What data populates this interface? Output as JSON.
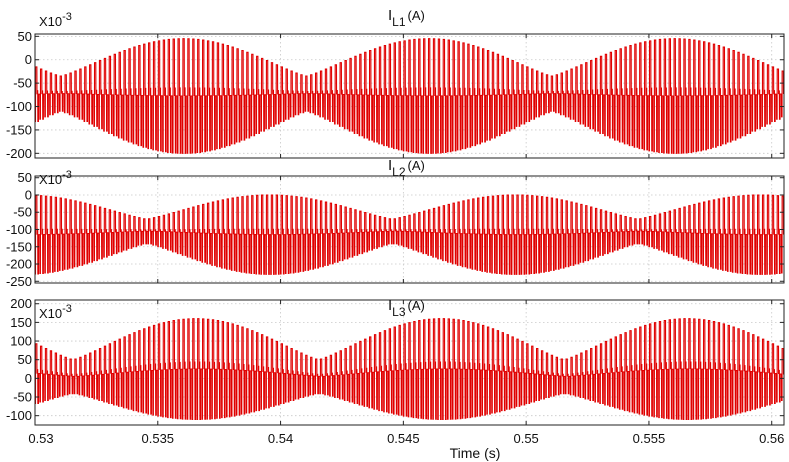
{
  "chart_data": [
    {
      "type": "line",
      "title_main": "I",
      "title_sub": "L1",
      "title_unit": "(A)",
      "scale_label_base": "X10",
      "scale_label_exp": "-3",
      "xlim": [
        0.53,
        0.5605
      ],
      "ylim": [
        -210,
        55
      ],
      "yticks": [
        50,
        0,
        -50,
        -100,
        -150,
        -200
      ],
      "ytick_labels": [
        "50",
        "0",
        "-50",
        "-100",
        "-150",
        "-200"
      ],
      "grid": true,
      "series": [
        {
          "color": "#e00000",
          "envelope_period_s": 0.01,
          "envelope_phase_s": 0.536,
          "low_level_when_quiet": -110,
          "high_level_when_quiet": -35,
          "min_at_envelope_peak": -200,
          "max_at_envelope_peak": 45,
          "switching_period_s": 0.0002,
          "trend": "increasing amplitude pulses modulated at 100 Hz",
          "min": -200,
          "max": 45
        }
      ]
    },
    {
      "type": "line",
      "title_main": "I",
      "title_sub": "L2",
      "title_unit": "(A)",
      "scale_label_base": "X10",
      "scale_label_exp": "-3",
      "xlim": [
        0.53,
        0.5605
      ],
      "ylim": [
        -255,
        55
      ],
      "yticks": [
        50,
        0,
        -50,
        -100,
        -150,
        -200,
        -250
      ],
      "ytick_labels": [
        "50",
        "0",
        "-50",
        "-100",
        "-150",
        "-200",
        "-250"
      ],
      "grid": true,
      "series": [
        {
          "color": "#e00000",
          "envelope_period_s": 0.01,
          "envelope_phase_s": 0.5395,
          "low_level_when_quiet": -140,
          "high_level_when_quiet": -70,
          "min_at_envelope_peak": -230,
          "max_at_envelope_peak": 0,
          "switching_period_s": 0.0002,
          "trend": "pulses modulated at 100 Hz, envelope peaks near 0.538, 0.548, 0.558 s",
          "min": -230,
          "max": 0
        }
      ]
    },
    {
      "type": "line",
      "title_main": "I",
      "title_sub": "L3",
      "title_unit": "(A)",
      "scale_label_base": "X10",
      "scale_label_exp": "-3",
      "xlim": [
        0.53,
        0.5605
      ],
      "ylim": [
        -125,
        210
      ],
      "yticks": [
        200,
        150,
        100,
        50,
        0,
        -50,
        -100
      ],
      "ytick_labels": [
        "200",
        "150",
        "100",
        "50",
        "0",
        "-50",
        "-100"
      ],
      "xticks": [
        0.53,
        0.535,
        0.54,
        0.545,
        0.55,
        0.555,
        0.56
      ],
      "xtick_labels": [
        "0.53",
        "0.535",
        "0.54",
        "0.545",
        "0.55",
        "0.555",
        "0.56"
      ],
      "xlabel": "Time (s)",
      "grid": true,
      "series": [
        {
          "color": "#e00000",
          "envelope_period_s": 0.01,
          "envelope_phase_s": 0.5365,
          "low_level_when_quiet": -40,
          "high_level_when_quiet": 50,
          "min_at_envelope_peak": -110,
          "max_at_envelope_peak": 160,
          "switching_period_s": 0.0002,
          "trend": "pulses modulated at 100 Hz, envelope peaks near 0.536, 0.546, 0.556 s",
          "min": -110,
          "max": 160
        }
      ]
    }
  ]
}
